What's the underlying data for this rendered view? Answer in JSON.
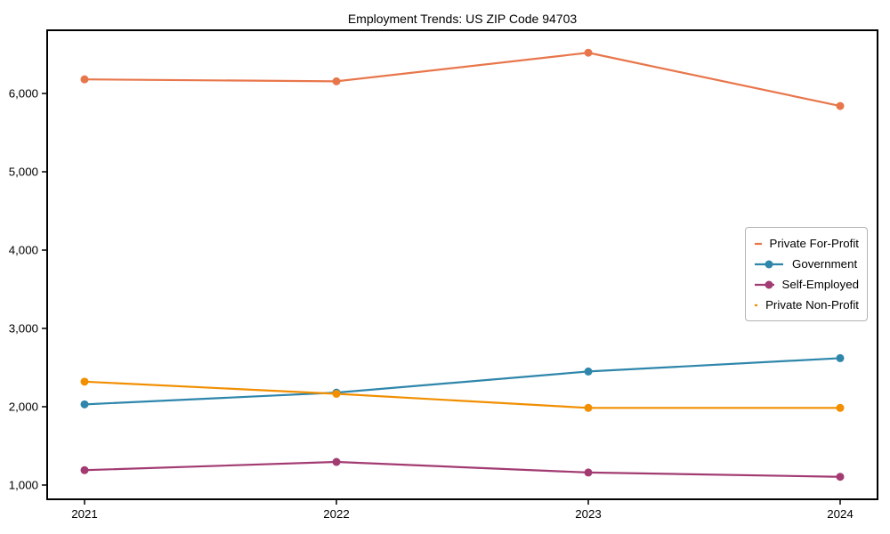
{
  "page": {
    "background_color": "#ffffff"
  },
  "chart_data": {
    "type": "line",
    "title": "Employment Trends: US ZIP Code 94703",
    "xlabel": "",
    "ylabel": "",
    "categories": [
      "2021",
      "2022",
      "2023",
      "2024"
    ],
    "series": [
      {
        "name": "Private For-Profit",
        "color": "#E8764B",
        "values": [
          6180,
          6155,
          6520,
          5840
        ]
      },
      {
        "name": "Government",
        "color": "#2E86AB",
        "values": [
          2030,
          2180,
          2450,
          2620
        ]
      },
      {
        "name": "Self-Employed",
        "color": "#A23B72",
        "values": [
          1190,
          1295,
          1160,
          1105
        ]
      },
      {
        "name": "Private Non-Profit",
        "color": "#F18F01",
        "values": [
          2320,
          2165,
          1985,
          1985
        ]
      }
    ],
    "yticks": [
      {
        "value": 1000,
        "label": "1,000"
      },
      {
        "value": 2000,
        "label": "2,000"
      },
      {
        "value": 3000,
        "label": "3,000"
      },
      {
        "value": 4000,
        "label": "4,000"
      },
      {
        "value": 5000,
        "label": "5,000"
      },
      {
        "value": 6000,
        "label": "6,000"
      }
    ],
    "ylim": [
      818,
      6807
    ],
    "grid": false,
    "legend_position": "center-right",
    "marker": "circle",
    "axis_color": "#000000"
  }
}
